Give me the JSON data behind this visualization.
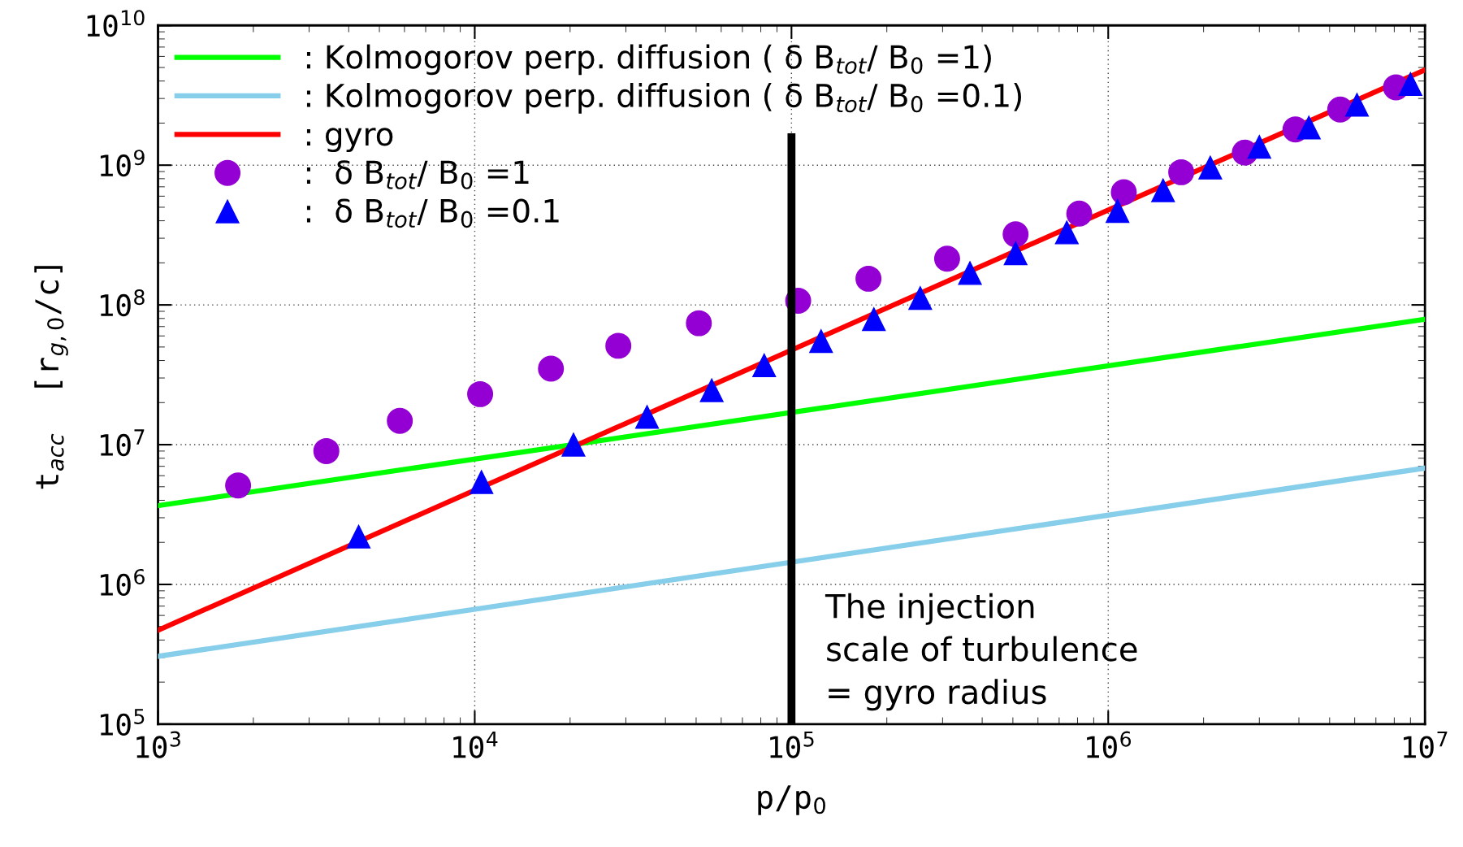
{
  "chart_data": {
    "type": "line",
    "xlabel": "p/p$_{0}$",
    "ylabel": "t$_{acc}$  [r$_{g,0}$/c]",
    "log": "xy",
    "grid": true,
    "legend": "top left",
    "xlim": [
      1000,
      10000000
    ],
    "ylim": [
      100000,
      10000000000
    ],
    "xticks": [
      {
        "value": 1000,
        "label": "10$^{3}$"
      },
      {
        "value": 10000,
        "label": "10$^{4}$"
      },
      {
        "value": 100000,
        "label": "10$^{5}$"
      },
      {
        "value": 1000000,
        "label": "10$^{6}$"
      },
      {
        "value": 10000000,
        "label": "10$^{7}$"
      }
    ],
    "yticks": [
      {
        "value": 100000,
        "label": "10$^{5}$"
      },
      {
        "value": 1000000,
        "label": "10$^{6}$"
      },
      {
        "value": 10000000,
        "label": "10$^{7}$"
      },
      {
        "value": 100000000,
        "label": "10$^{8}$"
      },
      {
        "value": 1000000000,
        "label": "10$^{9}$"
      },
      {
        "value": 10000000000,
        "label": "10$^{10}$"
      }
    ],
    "series": [
      {
        "name": ": Kolmogorov perp. diffusion ( δ B$_{tot}$/ B$_{0}$ =1)",
        "color": "#00ff00",
        "x": [
          1000,
          10000000
        ],
        "values": [
          3660000,
          79000000
        ]
      },
      {
        "name": ": Kolmogorov perp. diffusion ( δ B$_{tot}$/ B$_{0}$ =0.1)",
        "color": "#87ceeb",
        "x": [
          1000,
          10000000
        ],
        "values": [
          306000,
          6800000
        ]
      },
      {
        "name": ": gyro",
        "color": "#ff0000",
        "x": [
          1000,
          10000000
        ],
        "values": [
          470000,
          4800000000
        ]
      },
      {
        "name": ":  δ B$_{tot}$/ B$_{0}$ =1",
        "type": "scatter",
        "marker": "circle",
        "color": "#9400d3",
        "x": [
          1790,
          3400,
          5800,
          10400,
          17400,
          28400,
          51000,
          105000,
          175000,
          310000,
          510000,
          810000,
          1120000,
          1700000,
          2700000,
          3900000,
          5400000,
          8100000
        ],
        "values": [
          5100000,
          9000000,
          14800000,
          23000000,
          35000000,
          51000000,
          74000000,
          107000000,
          154000000,
          214000000,
          320000000,
          450000000,
          640000000,
          890000000,
          1230000000,
          1800000000,
          2500000000,
          3600000000
        ]
      },
      {
        "name": ":  δ B$_{tot}$/ B$_{0}$ =0.1",
        "type": "scatter",
        "marker": "triangle",
        "color": "#0000ff",
        "x": [
          4300,
          10500,
          20500,
          35000,
          56000,
          82000,
          124000,
          182000,
          255000,
          366000,
          510000,
          740000,
          1070000,
          1490000,
          2100000,
          3000000,
          4300000,
          6100000,
          9000000
        ],
        "values": [
          2200000,
          5400000,
          10000000,
          15800000,
          24500000,
          37000000,
          55000000,
          79000000,
          112000000,
          169000000,
          234000000,
          330000000,
          470000000,
          660000000,
          960000000,
          1350000000,
          1860000000,
          2700000000,
          3800000000
        ]
      }
    ],
    "ref_lines": [
      {
        "axis": "x",
        "value": 100000,
        "label": "The injection\nscale of turbulence\n= gyro radius",
        "color": "#000000"
      }
    ]
  }
}
